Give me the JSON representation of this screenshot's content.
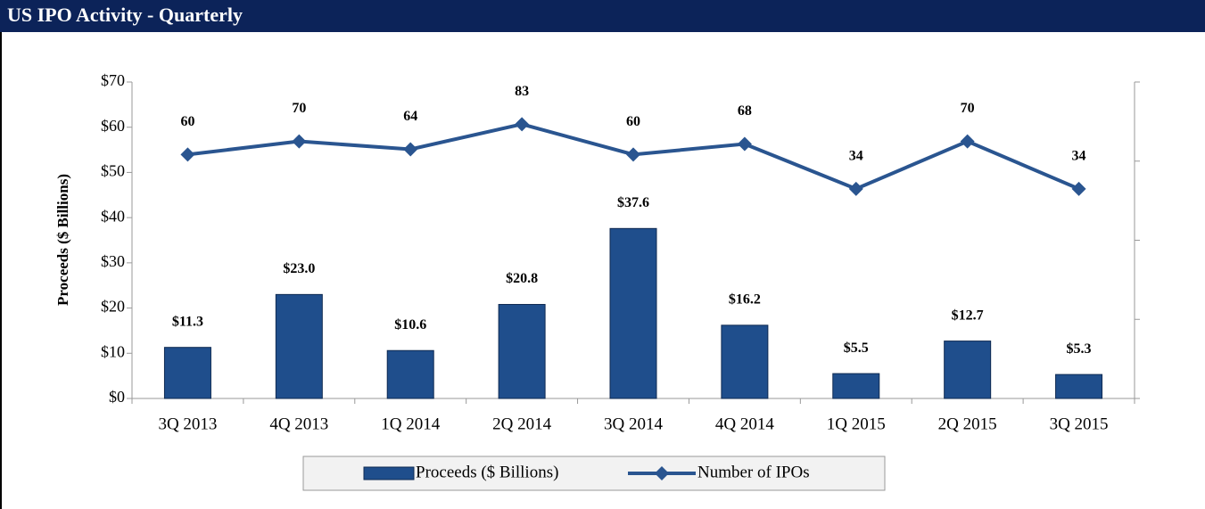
{
  "chart_data": {
    "type": "bar_line",
    "title": "US IPO Activity - Quarterly",
    "y_label": "Proceeds ($ Billions)",
    "categories": [
      "3Q 2013",
      "4Q 2013",
      "1Q 2014",
      "2Q 2014",
      "3Q 2014",
      "4Q 2014",
      "1Q 2015",
      "2Q 2015",
      "3Q 2015"
    ],
    "series": [
      {
        "name": "Proceeds ($ Billions)",
        "type": "bar",
        "color": "#1f4e8c",
        "values": [
          11.3,
          23.0,
          10.6,
          20.8,
          37.6,
          16.2,
          5.5,
          12.7,
          5.3
        ],
        "value_labels": [
          "$11.3",
          "$23.0",
          "$10.6",
          "$20.8",
          "$37.6",
          "$16.2",
          "$5.5",
          "$12.7",
          "$5.3"
        ]
      },
      {
        "name": "Number of IPOs",
        "type": "line",
        "axis": "y2",
        "color": "#2a5590",
        "values": [
          60,
          70,
          64,
          83,
          60,
          68,
          34,
          70,
          34
        ]
      }
    ],
    "ylim": [
      0,
      70
    ],
    "yticks": [
      {
        "value": 0,
        "label": "$0"
      },
      {
        "value": 10,
        "label": "$10"
      },
      {
        "value": 20,
        "label": "$20"
      },
      {
        "value": 30,
        "label": "$30"
      },
      {
        "value": 40,
        "label": "$40"
      },
      {
        "value": 50,
        "label": "$50"
      },
      {
        "value": 60,
        "label": "$60"
      },
      {
        "value": 70,
        "label": "$70"
      }
    ],
    "y2lim": [
      -125,
      115
    ],
    "y2ticks": [
      -125,
      -65,
      -5,
      55,
      115
    ]
  }
}
